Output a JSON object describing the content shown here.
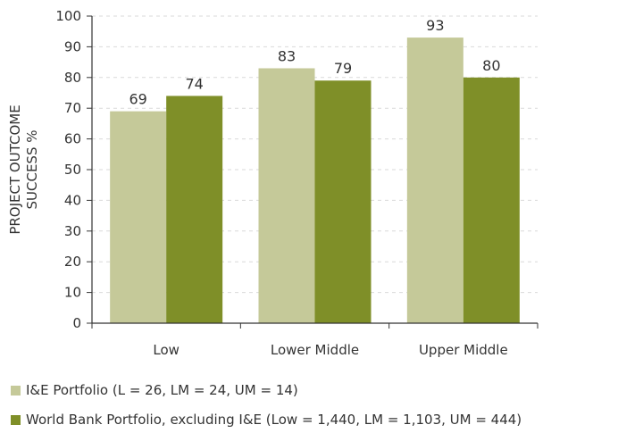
{
  "chart_data": {
    "type": "bar",
    "categories": [
      "Low",
      "Lower Middle",
      "Upper Middle"
    ],
    "series": [
      {
        "name": "I&E Portfolio (L = 26, LM = 24, UM = 14)",
        "values": [
          69,
          83,
          93
        ],
        "color": "#c5c999"
      },
      {
        "name": "World Bank Portfolio, excluding I&E (Low = 1,440, LM = 1,103, UM = 444)",
        "values": [
          74,
          79,
          80
        ],
        "color": "#7f8f28"
      }
    ],
    "data_labels": [
      [
        "69",
        "83",
        "93"
      ],
      [
        "74",
        "79",
        "80"
      ]
    ],
    "ylabel_lines": [
      "PROJECT OUTCOME",
      "SUCCESS %"
    ],
    "xlabel": "",
    "yticks": [
      0,
      10,
      20,
      30,
      40,
      50,
      60,
      70,
      80,
      90,
      100
    ],
    "ylim": [
      0,
      100
    ],
    "grid": "horizontal-dashed",
    "legend_position": "bottom-left"
  }
}
